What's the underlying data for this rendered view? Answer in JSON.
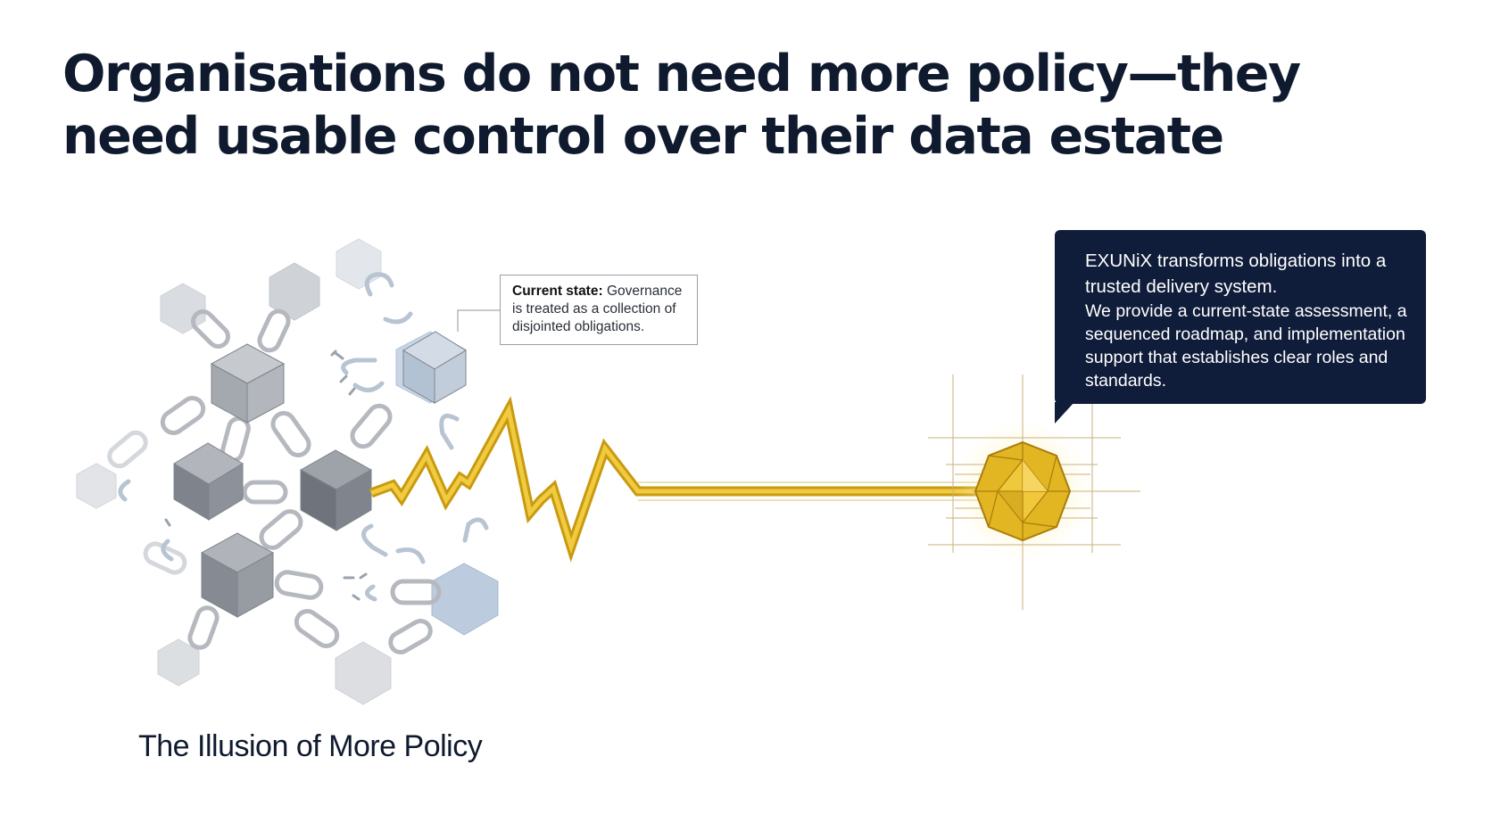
{
  "headline": {
    "line1": "Organisations do not need more policy—they",
    "line2": "need usable control over their data estate"
  },
  "current_state_callout": {
    "label": "Current state:",
    "text": " Governance is treated as a collection of disjointed obligations."
  },
  "exunix_callout": {
    "lead": "EXUNiX transforms obligations into a trusted delivery system.",
    "body": "We provide a current-state assessment, a sequenced roadmap, and implementation support that establishes clear roles and standards."
  },
  "caption": "The Illusion of More Policy",
  "colors": {
    "navy": "#0f1c3a",
    "gold": "#e0b520",
    "gold_dark": "#b58a10",
    "grey_block": "#8e939b",
    "blue_grey": "#b7c6d8"
  },
  "icons": [
    "hexagon-block",
    "cube-block",
    "chain-link",
    "broken-chain-link",
    "zigzag-signal",
    "gold-polyhedron-gem"
  ]
}
